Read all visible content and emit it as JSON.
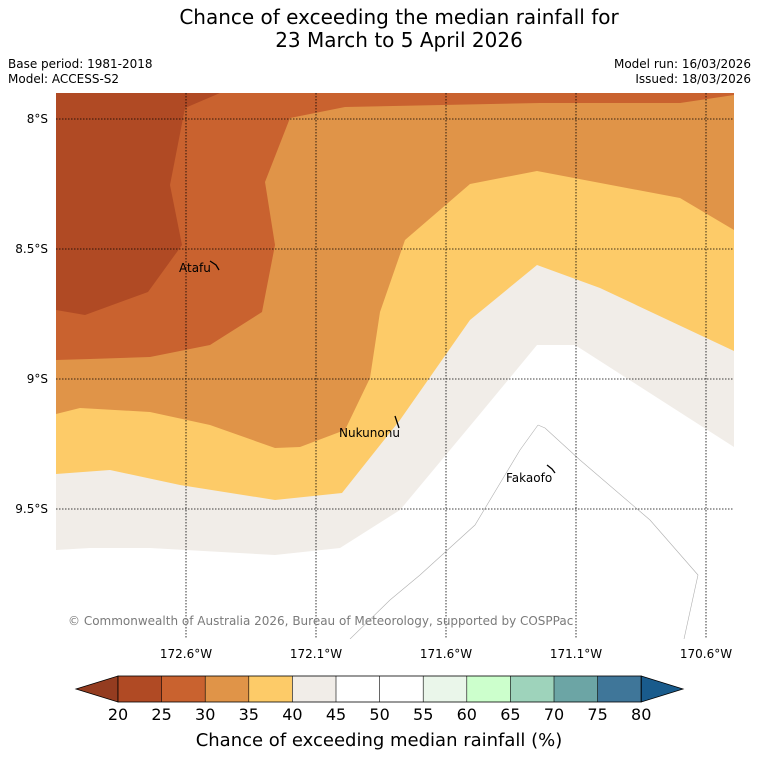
{
  "title": {
    "line1": "Chance of exceeding the median rainfall for",
    "line2": "23 March to 5 April 2026"
  },
  "meta": {
    "base_period": "Base period: 1981-2018",
    "model": "Model: ACCESS-S2",
    "model_run": "Model run: 16/03/2026",
    "issued": "Issued: 18/03/2026"
  },
  "map": {
    "lon_labels": [
      "172.6°W",
      "172.1°W",
      "171.6°W",
      "171.1°W",
      "170.6°W"
    ],
    "lat_labels": [
      "8°S",
      "8.5°S",
      "9°S",
      "9.5°S"
    ],
    "places": [
      "Atafu",
      "Nukunonu",
      "Fakaofo"
    ],
    "copyright": "© Commonwealth of Australia 2026, Bureau of Meteorology, supported by COSPPac"
  },
  "colorbar": {
    "ticks": [
      "20",
      "25",
      "30",
      "35",
      "40",
      "45",
      "50",
      "55",
      "60",
      "65",
      "70",
      "75",
      "80"
    ],
    "label": "Chance of exceeding median rainfall (%)",
    "colors": [
      "#b04a24",
      "#c9622f",
      "#e09448",
      "#fdcb68",
      "#f1ede8",
      "#ffffff",
      "#ffffff",
      "#eaf6ea",
      "#ccffcc",
      "#9ed3bb",
      "#6ca5a5",
      "#3f7699"
    ],
    "under_color": "#943c20",
    "over_color": "#195b8c"
  }
}
